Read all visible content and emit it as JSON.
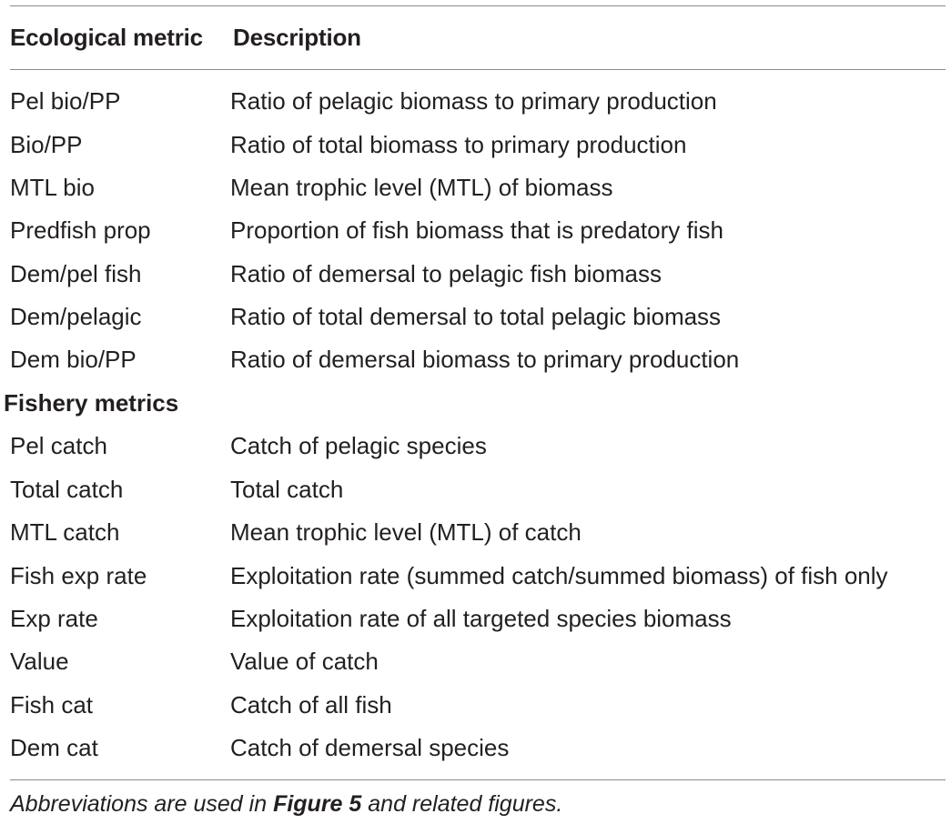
{
  "table": {
    "header": {
      "metric": "Ecological metric",
      "description": "Description"
    },
    "ecological_rows": [
      {
        "abbr": "Pel bio/PP",
        "description": "Ratio of pelagic biomass to primary production"
      },
      {
        "abbr": "Bio/PP",
        "description": "Ratio of total biomass to primary production"
      },
      {
        "abbr": "MTL bio",
        "description": "Mean trophic level (MTL) of biomass"
      },
      {
        "abbr": "Predfish prop",
        "description": "Proportion of fish biomass that is predatory fish"
      },
      {
        "abbr": "Dem/pel fish",
        "description": "Ratio of demersal to pelagic fish biomass"
      },
      {
        "abbr": "Dem/pelagic",
        "description": "Ratio of total demersal to total pelagic biomass"
      },
      {
        "abbr": "Dem bio/PP",
        "description": "Ratio of demersal biomass to primary production"
      }
    ],
    "fishery_section_label": "Fishery metrics",
    "fishery_rows": [
      {
        "abbr": "Pel catch",
        "description": "Catch of pelagic species"
      },
      {
        "abbr": "Total catch",
        "description": "Total catch"
      },
      {
        "abbr": "MTL catch",
        "description": "Mean trophic level (MTL) of catch"
      },
      {
        "abbr": "Fish exp rate",
        "description": "Exploitation rate (summed catch/summed biomass) of fish only"
      },
      {
        "abbr": "Exp rate",
        "description": "Exploitation rate of all targeted species biomass"
      },
      {
        "abbr": "Value",
        "description": "Value of catch"
      },
      {
        "abbr": "Fish cat",
        "description": "Catch of all fish"
      },
      {
        "abbr": "Dem cat",
        "description": "Catch of demersal species"
      }
    ]
  },
  "footnote": {
    "prefix": "Abbreviations are used in ",
    "emphasis": "Figure 5",
    "suffix": " and related figures."
  }
}
